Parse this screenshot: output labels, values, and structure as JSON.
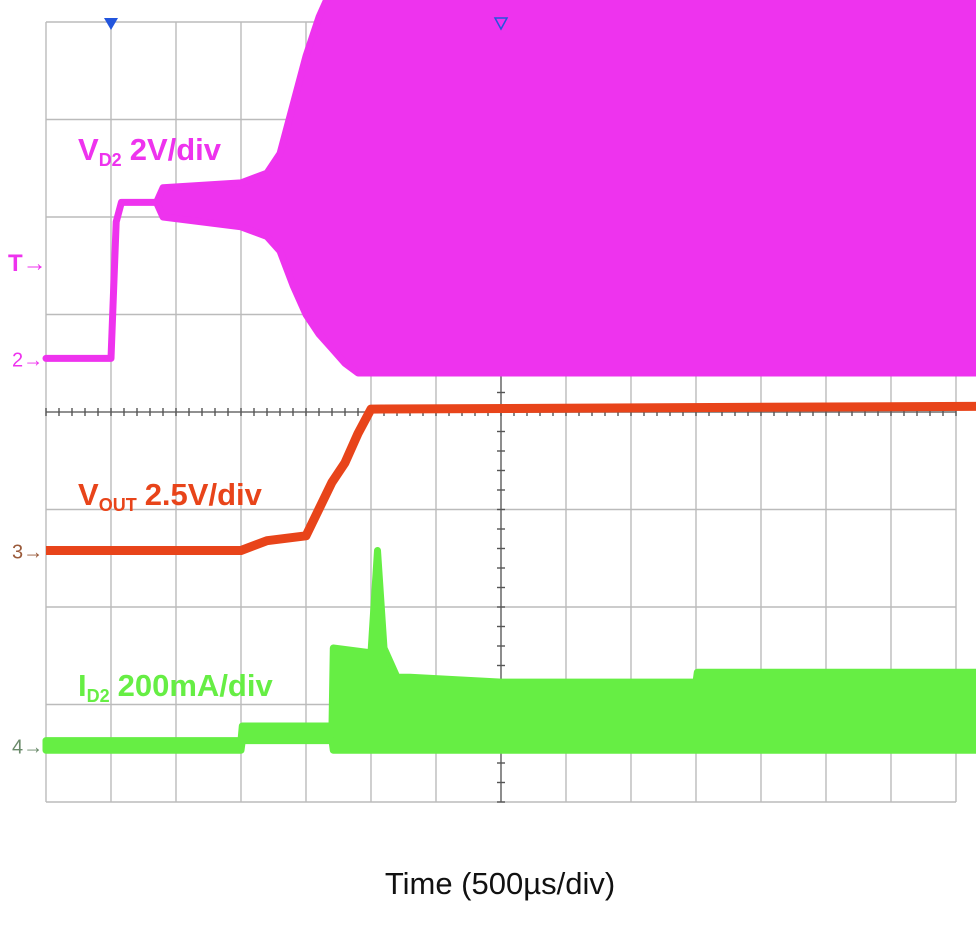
{
  "chart_data": {
    "type": "line",
    "title": "",
    "xlabel": "Time (500µs/div)",
    "time_per_div_us": 500,
    "grid": true,
    "x_divisions": 14,
    "y_divisions": 8,
    "x_unit": "µs",
    "trigger_marker": "T",
    "series": [
      {
        "name": "V",
        "name_sub": "D2",
        "scale": "2V/div",
        "ground_marker": "2",
        "color": "#ee33ee",
        "style": "envelope",
        "x": [
          -500,
          0,
          40,
          80,
          350,
          400,
          1000,
          1200,
          1300,
          1400,
          1500,
          1600,
          1700,
          1800,
          1900,
          1980,
          2000,
          6800
        ],
        "upper_div": [
          0.0,
          0.0,
          1.4,
          1.6,
          1.6,
          1.75,
          1.8,
          1.9,
          2.1,
          2.6,
          3.1,
          3.5,
          3.8,
          4.05,
          4.25,
          4.3,
          4.3,
          4.3
        ],
        "lower_div": [
          0.0,
          0.0,
          1.4,
          1.6,
          1.6,
          1.45,
          1.35,
          1.25,
          1.1,
          0.75,
          0.45,
          0.25,
          0.1,
          -0.05,
          -0.15,
          -0.15,
          -0.15,
          -0.15
        ]
      },
      {
        "name": "V",
        "name_sub": "OUT",
        "scale": "2.5V/div",
        "ground_marker": "3",
        "color": "#e8441a",
        "style": "line",
        "x": [
          -500,
          1000,
          1200,
          1500,
          1700,
          1800,
          1900,
          2000,
          6800
        ],
        "y_div": [
          0.0,
          0.0,
          0.1,
          0.15,
          0.7,
          0.9,
          1.2,
          1.45,
          1.48
        ]
      },
      {
        "name": "I",
        "name_sub": "D2",
        "scale": "200mA/div",
        "ground_marker": "4",
        "color": "#66ee44",
        "style": "envelope",
        "x": [
          -500,
          1000,
          1010,
          1700,
          1710,
          2000,
          2050,
          2100,
          2200,
          2300,
          3000,
          4500,
          4510,
          6800
        ],
        "upper_div": [
          0.05,
          0.05,
          0.2,
          0.2,
          1.0,
          0.95,
          2.0,
          1.0,
          0.7,
          0.7,
          0.65,
          0.65,
          0.75,
          0.75
        ],
        "lower_div": [
          -0.05,
          -0.05,
          0.05,
          0.05,
          -0.05,
          -0.05,
          -0.05,
          -0.05,
          -0.05,
          -0.05,
          -0.05,
          -0.05,
          -0.05,
          -0.05
        ]
      }
    ]
  }
}
